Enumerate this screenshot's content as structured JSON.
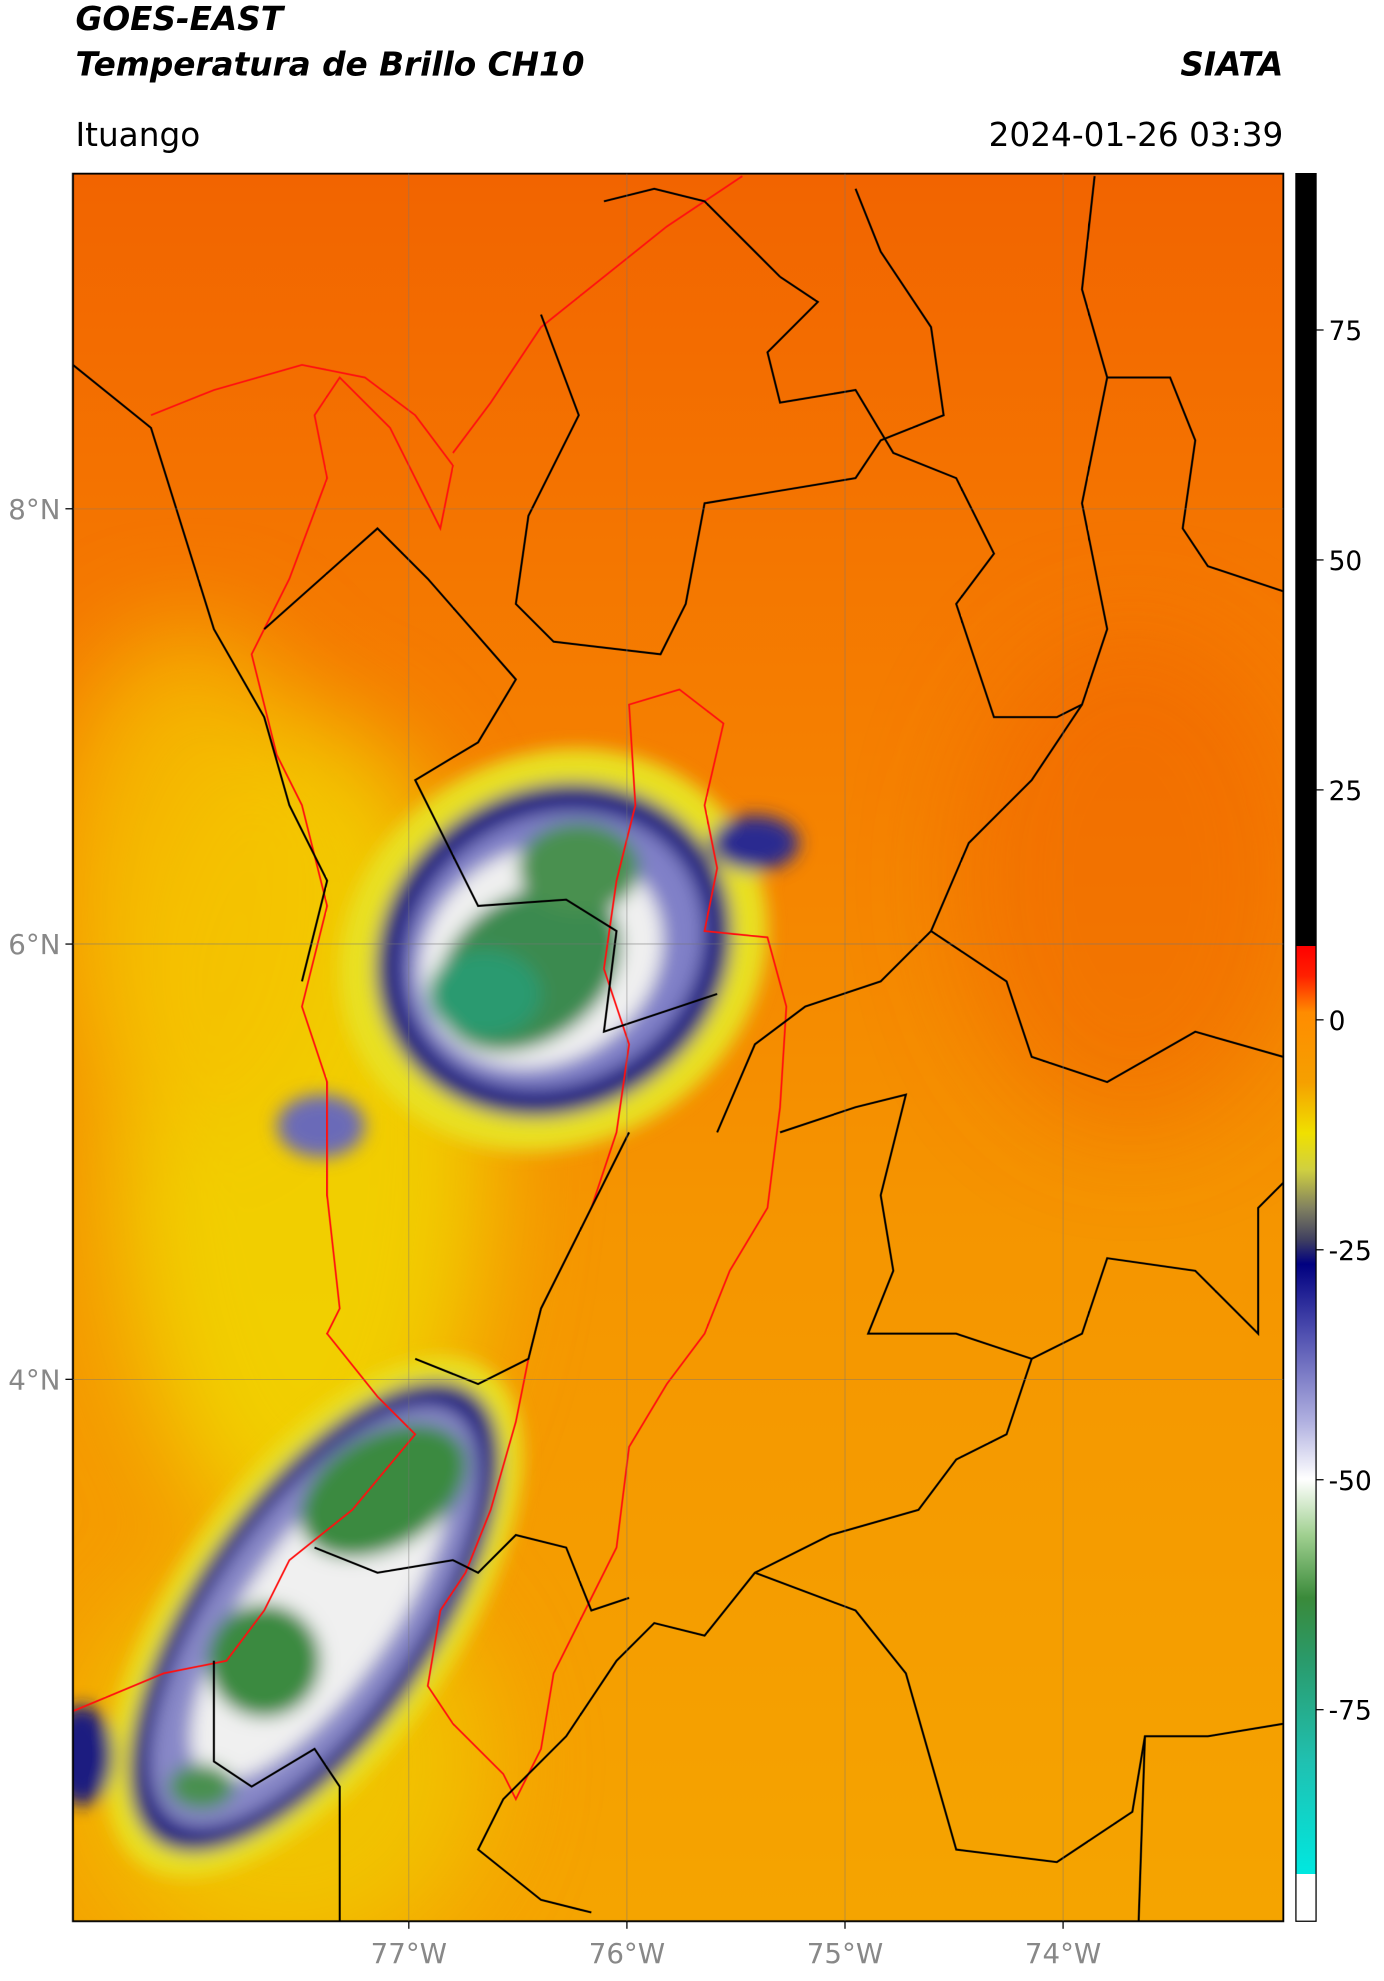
{
  "header": {
    "title": "GOES-EAST",
    "subtitle": "Temperatura de Brillo CH10",
    "source": "SIATA",
    "location": "Ituango",
    "timestamp": "2024-01-26 03:39"
  },
  "map": {
    "lonlim": [
      -78.54,
      -72.99
    ],
    "latlim": [
      1.51,
      9.54
    ],
    "lonticks": [
      {
        "value": -77,
        "label": "77°W"
      },
      {
        "value": -76,
        "label": "76°W"
      },
      {
        "value": -75,
        "label": "75°W"
      },
      {
        "value": -74,
        "label": "74°W"
      }
    ],
    "latticks": [
      {
        "value": 8,
        "label": "8°N"
      },
      {
        "value": 6,
        "label": "6°N"
      },
      {
        "value": 4,
        "label": "4°N"
      }
    ],
    "grid": true
  },
  "colorbar": {
    "clim": [
      -98,
      92
    ],
    "ticks": [
      75,
      50,
      25,
      0,
      -25,
      -50,
      -75
    ]
  }
}
